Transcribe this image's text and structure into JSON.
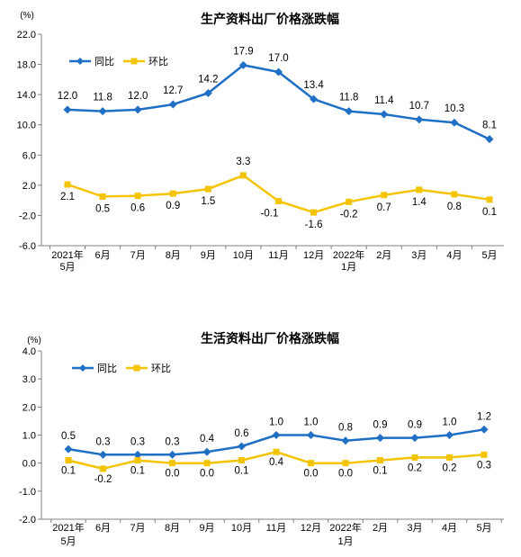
{
  "chart_data": [
    {
      "type": "line",
      "title": "生产资料出厂价格涨跌幅",
      "unit_label": "(%)",
      "ylim": [
        -6.0,
        22.0
      ],
      "yticks": [
        "22.0",
        "18.0",
        "14.0",
        "10.0",
        "6.0",
        "2.0",
        "-2.0",
        "-6.0"
      ],
      "ytick_values": [
        22,
        18,
        14,
        10,
        6,
        2,
        -2,
        -6
      ],
      "categories": [
        [
          "2021年",
          "5月"
        ],
        [
          "6月"
        ],
        [
          "7月"
        ],
        [
          "8月"
        ],
        [
          "9月"
        ],
        [
          "10月"
        ],
        [
          "11月"
        ],
        [
          "12月"
        ],
        [
          "2022年",
          "1月"
        ],
        [
          "2月"
        ],
        [
          "3月"
        ],
        [
          "4月"
        ],
        [
          "5月"
        ]
      ],
      "grid": false,
      "legend_position": "top-left",
      "series": [
        {
          "name": "同比",
          "color": "#1F6FC5",
          "marker": "diamond",
          "values": [
            12.0,
            11.8,
            12.0,
            12.7,
            14.2,
            17.9,
            17.0,
            13.4,
            11.8,
            11.4,
            10.7,
            10.3,
            8.1
          ],
          "labels": [
            "12.0",
            "11.8",
            "12.0",
            "12.7",
            "14.2",
            "17.9",
            "17.0",
            "13.4",
            "11.8",
            "11.4",
            "10.7",
            "10.3",
            "8.1"
          ]
        },
        {
          "name": "环比",
          "color": "#F5C400",
          "marker": "square",
          "values": [
            2.1,
            0.5,
            0.6,
            0.9,
            1.5,
            3.3,
            -0.1,
            -1.6,
            -0.2,
            0.7,
            1.4,
            0.8,
            0.1
          ],
          "labels": [
            "2.1",
            "0.5",
            "0.6",
            "0.9",
            "1.5",
            "3.3",
            "-0.1",
            "-1.6",
            "-0.2",
            "0.7",
            "1.4",
            "0.8",
            "0.1"
          ]
        }
      ]
    },
    {
      "type": "line",
      "title": "生活资料出厂价格涨跌幅",
      "unit_label": "(%)",
      "ylim": [
        -2.0,
        4.0
      ],
      "yticks": [
        "4.0",
        "3.0",
        "2.0",
        "1.0",
        "0.0",
        "-1.0",
        "-2.0"
      ],
      "ytick_values": [
        4,
        3,
        2,
        1,
        0,
        -1,
        -2
      ],
      "categories": [
        [
          "2021年",
          "5月"
        ],
        [
          "6月"
        ],
        [
          "7月"
        ],
        [
          "8月"
        ],
        [
          "9月"
        ],
        [
          "10月"
        ],
        [
          "11月"
        ],
        [
          "12月"
        ],
        [
          "2022年",
          "1月"
        ],
        [
          "2月"
        ],
        [
          "3月"
        ],
        [
          "4月"
        ],
        [
          "5月"
        ]
      ],
      "grid": false,
      "legend_position": "top-left",
      "series": [
        {
          "name": "同比",
          "color": "#1F6FC5",
          "marker": "diamond",
          "values": [
            0.5,
            0.3,
            0.3,
            0.3,
            0.4,
            0.6,
            1.0,
            1.0,
            0.8,
            0.9,
            0.9,
            1.0,
            1.2
          ],
          "labels": [
            "0.5",
            "0.3",
            "0.3",
            "0.3",
            "0.4",
            "0.6",
            "1.0",
            "1.0",
            "0.8",
            "0.9",
            "0.9",
            "1.0",
            "1.2"
          ]
        },
        {
          "name": "环比",
          "color": "#F5C400",
          "marker": "square",
          "values": [
            0.1,
            -0.2,
            0.1,
            0.0,
            0.0,
            0.1,
            0.4,
            0.0,
            0.0,
            0.1,
            0.2,
            0.2,
            0.3
          ],
          "labels": [
            "0.1",
            "-0.2",
            "0.1",
            "0.0",
            "0.0",
            "0.1",
            "0.4",
            "0.0",
            "0.0",
            "0.1",
            "0.2",
            "0.2",
            "0.3"
          ]
        }
      ]
    }
  ]
}
